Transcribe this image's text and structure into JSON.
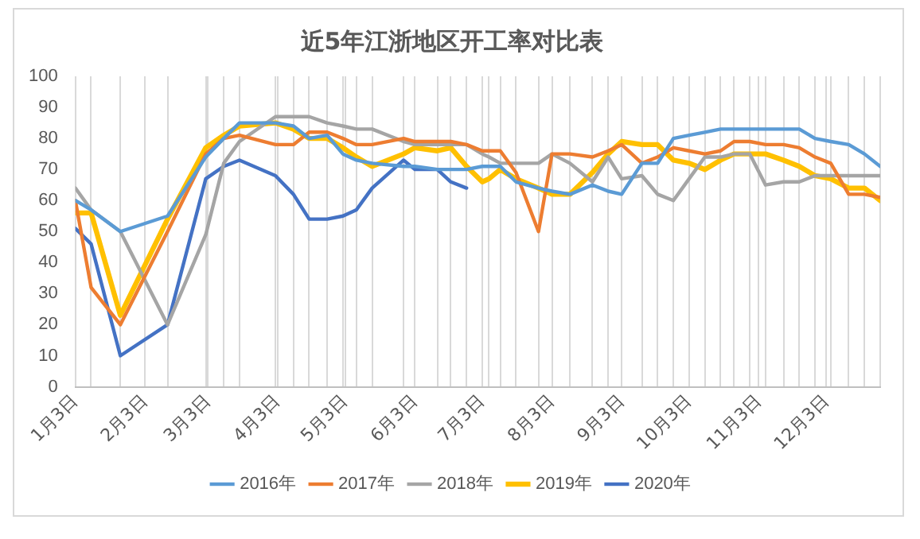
{
  "chart_data": {
    "type": "line",
    "title": "近5年江浙地区开工率对比表",
    "x": [
      "--01-03",
      "--01-10",
      "--01-23",
      "--02-13",
      "--03-02",
      "--03-10",
      "--03-17",
      "--04-02",
      "--04-10",
      "--04-17",
      "--04-25",
      "--05-02",
      "--05-08",
      "--05-15",
      "--05-29",
      "--06-03",
      "--06-13",
      "--06-19",
      "--06-26",
      "--07-03",
      "--07-06",
      "--07-11",
      "--07-18",
      "--07-28",
      "--08-03",
      "--08-11",
      "--08-21",
      "--08-28",
      "--09-03",
      "--09-12",
      "--09-19",
      "--09-26",
      "--10-03",
      "--10-10",
      "--10-17",
      "--10-23",
      "--10-30",
      "--11-06",
      "--11-14",
      "--11-21",
      "--11-28",
      "--12-05",
      "--12-13",
      "--12-20",
      "--12-27"
    ],
    "series": [
      {
        "name": "2016年",
        "color": "#5b9bd5",
        "values": [
          60,
          57,
          50,
          55,
          74,
          80,
          85,
          85,
          84,
          80,
          81,
          75,
          73,
          72,
          71,
          71,
          70,
          70,
          70,
          71,
          71,
          71,
          66,
          64,
          63,
          62,
          65,
          63,
          62,
          72,
          72,
          80,
          81,
          82,
          83,
          83,
          83,
          83,
          83,
          83,
          80,
          79,
          78,
          75,
          71
        ]
      },
      {
        "name": "2017年",
        "color": "#ed7d31",
        "values": [
          60,
          32,
          20,
          50,
          75,
          80,
          81,
          78,
          78,
          82,
          82,
          80,
          78,
          78,
          80,
          79,
          79,
          79,
          78,
          76,
          76,
          76,
          69,
          50,
          75,
          75,
          74,
          76,
          78,
          72,
          74,
          77,
          76,
          75,
          76,
          79,
          79,
          78,
          78,
          77,
          74,
          72,
          62,
          62,
          61
        ]
      },
      {
        "name": "2018年",
        "color": "#a5a5a5",
        "values": [
          64,
          57,
          50,
          20,
          49,
          72,
          79,
          87,
          87,
          87,
          85,
          84,
          83,
          83,
          79,
          78,
          78,
          78,
          78,
          75,
          74,
          72,
          72,
          72,
          75,
          72,
          66,
          74,
          67,
          68,
          62,
          60,
          67,
          74,
          74,
          75,
          75,
          65,
          66,
          66,
          68,
          68,
          68,
          68,
          68
        ]
      },
      {
        "name": "2019年",
        "color": "#ffc000",
        "values": [
          56,
          56,
          23,
          54,
          77,
          81,
          84,
          85,
          83,
          80,
          80,
          77,
          74,
          71,
          75,
          77,
          76,
          77,
          71,
          66,
          67,
          70,
          67,
          64,
          62,
          62,
          69,
          75,
          79,
          78,
          78,
          73,
          72,
          70,
          73,
          75,
          75,
          75,
          73,
          71,
          68,
          67,
          64,
          64,
          60
        ]
      },
      {
        "name": "2020年",
        "color": "#4472c4",
        "values": [
          51,
          46,
          10,
          20,
          67,
          71,
          73,
          68,
          62,
          54,
          54,
          55,
          57,
          64,
          73,
          70,
          70,
          66,
          64,
          null,
          null,
          null,
          null,
          null,
          null,
          null,
          null,
          null,
          null,
          null,
          null,
          null,
          null,
          null,
          null,
          null,
          null,
          null,
          null,
          null,
          null,
          null,
          null,
          null,
          null
        ]
      }
    ],
    "xlim": [
      "--01-03",
      "--12-27"
    ],
    "xticks": [
      {
        "value": "--01-03",
        "label": "1月3日"
      },
      {
        "value": "--01-10",
        "label": null
      },
      {
        "value": "--01-23",
        "label": null
      },
      {
        "value": "--02-03",
        "label": "2月3日"
      },
      {
        "value": "--02-13",
        "label": null
      },
      {
        "value": "--03-02",
        "label": null
      },
      {
        "value": "--03-03",
        "label": "3月3日"
      },
      {
        "value": "--03-10",
        "label": null
      },
      {
        "value": "--03-17",
        "label": null
      },
      {
        "value": "--04-02",
        "label": null
      },
      {
        "value": "--04-03",
        "label": "4月3日"
      },
      {
        "value": "--04-10",
        "label": null
      },
      {
        "value": "--04-17",
        "label": null
      },
      {
        "value": "--04-25",
        "label": null
      },
      {
        "value": "--05-02",
        "label": null
      },
      {
        "value": "--05-03",
        "label": "5月3日"
      },
      {
        "value": "--05-08",
        "label": null
      },
      {
        "value": "--05-15",
        "label": null
      },
      {
        "value": "--05-29",
        "label": null
      },
      {
        "value": "--06-03",
        "label": "6月3日"
      },
      {
        "value": "--06-13",
        "label": null
      },
      {
        "value": "--06-19",
        "label": null
      },
      {
        "value": "--06-26",
        "label": null
      },
      {
        "value": "--07-03",
        "label": "7月3日"
      },
      {
        "value": "--07-06",
        "label": null
      },
      {
        "value": "--07-11",
        "label": null
      },
      {
        "value": "--07-18",
        "label": null
      },
      {
        "value": "--07-28",
        "label": null
      },
      {
        "value": "--08-03",
        "label": "8月3日"
      },
      {
        "value": "--08-11",
        "label": null
      },
      {
        "value": "--08-21",
        "label": null
      },
      {
        "value": "--08-28",
        "label": null
      },
      {
        "value": "--09-03",
        "label": "9月3日"
      },
      {
        "value": "--09-12",
        "label": null
      },
      {
        "value": "--09-19",
        "label": null
      },
      {
        "value": "--09-26",
        "label": null
      },
      {
        "value": "--10-03",
        "label": "10月3日"
      },
      {
        "value": "--10-10",
        "label": null
      },
      {
        "value": "--10-17",
        "label": null
      },
      {
        "value": "--10-23",
        "label": null
      },
      {
        "value": "--10-30",
        "label": null
      },
      {
        "value": "--11-03",
        "label": "11月3日"
      },
      {
        "value": "--11-06",
        "label": null
      },
      {
        "value": "--11-14",
        "label": null
      },
      {
        "value": "--11-21",
        "label": null
      },
      {
        "value": "--11-28",
        "label": null
      },
      {
        "value": "--12-03",
        "label": "12月3日"
      },
      {
        "value": "--12-05",
        "label": null
      },
      {
        "value": "--12-13",
        "label": null
      },
      {
        "value": "--12-20",
        "label": null
      },
      {
        "value": "--12-27",
        "label": null
      }
    ],
    "ylim": [
      0,
      100
    ],
    "yticks": [
      0,
      10,
      20,
      30,
      40,
      50,
      60,
      70,
      80,
      90,
      100
    ],
    "grid": "x",
    "legend": "bottom",
    "marker": "none",
    "line_style": "solid"
  }
}
